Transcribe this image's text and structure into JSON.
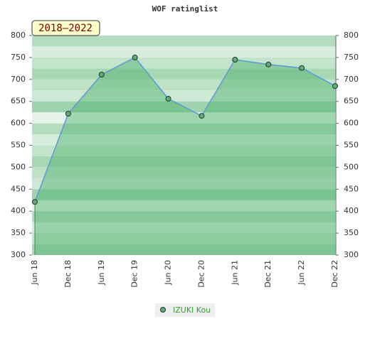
{
  "chart_data": {
    "type": "line",
    "title": "WOF ratinglist",
    "annotation": "2018–2022",
    "categories": [
      "Jun 18",
      "Dec 18",
      "Jun 19",
      "Dec 19",
      "Jun 20",
      "Dec 20",
      "Jun 21",
      "Dec 21",
      "Jun 22",
      "Dec 22"
    ],
    "series": [
      {
        "name": "IZUKI Kou",
        "color": "#5b9bd5",
        "marker_color": "#5fae6a",
        "values": [
          421,
          622,
          711,
          750,
          656,
          617,
          745,
          734,
          726,
          685
        ]
      }
    ],
    "area_color": "#4caf6a",
    "ylim": [
      300,
      800
    ],
    "yticks": [
      300,
      350,
      400,
      450,
      500,
      550,
      600,
      650,
      700,
      750,
      800
    ],
    "y2lim": [
      300,
      800
    ],
    "y2ticks": [
      300,
      350,
      400,
      450,
      500,
      550,
      600,
      650,
      700,
      750,
      800
    ]
  }
}
